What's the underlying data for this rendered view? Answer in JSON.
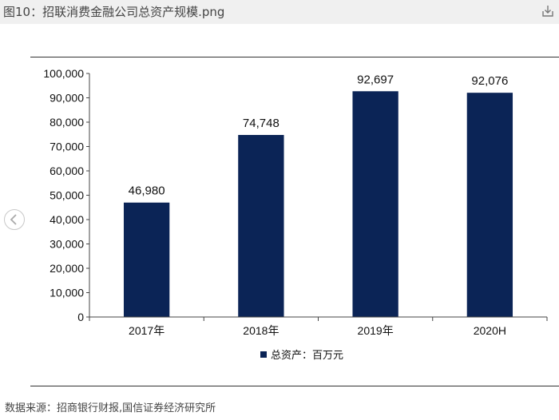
{
  "viewer": {
    "title": "图10：招联消费金融公司总资产规模.png",
    "download_icon": "download-icon",
    "prev_icon": "chevron-left-icon"
  },
  "chart_data": {
    "type": "bar",
    "categories": [
      "2017年",
      "2018年",
      "2019年",
      "2020H"
    ],
    "series": [
      {
        "name": "总资产：百万元",
        "values": [
          46980,
          74748,
          92697,
          92076
        ]
      }
    ],
    "data_labels": [
      "46,980",
      "74,748",
      "92,697",
      "92,076"
    ],
    "ylim": [
      0,
      100000
    ],
    "y_ticks": [
      0,
      10000,
      20000,
      30000,
      40000,
      50000,
      60000,
      70000,
      80000,
      90000,
      100000
    ],
    "y_tick_labels": [
      "0",
      "10,000",
      "20,000",
      "30,000",
      "40,000",
      "50,000",
      "60,000",
      "70,000",
      "80,000",
      "90,000",
      "100,000"
    ],
    "bar_color": "#0b2456",
    "grid": false,
    "legend_position": "bottom-center"
  },
  "source_note": "数据来源：招商银行财报,国信证券经济研究所"
}
